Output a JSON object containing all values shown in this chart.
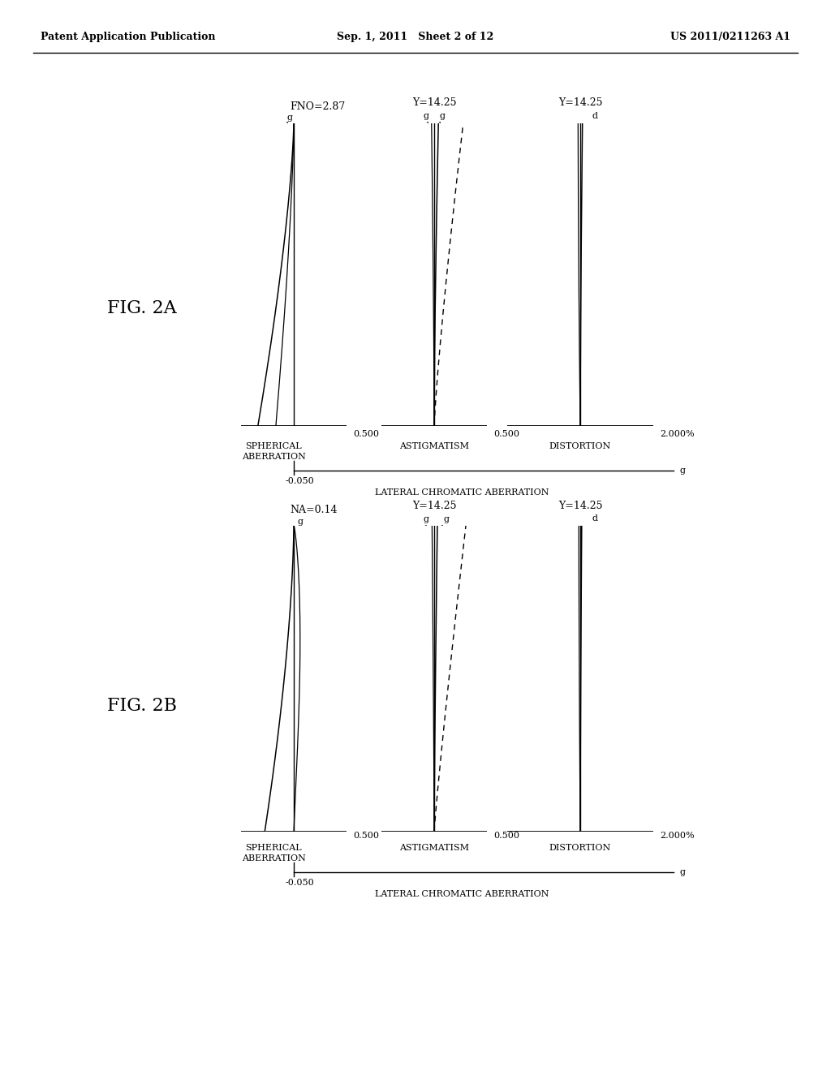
{
  "header_left": "Patent Application Publication",
  "header_mid": "Sep. 1, 2011   Sheet 2 of 12",
  "header_right": "US 2011/0211263 A1",
  "fig2a_label": "FIG. 2A",
  "fig2b_label": "FIG. 2B",
  "charts": {
    "fig2a_spherical_title": "FNO=2.87",
    "fig2a_astig_title": "Y=14.25",
    "fig2a_dist_title": "Y=14.25",
    "fig2b_spherical_title": "NA=0.14",
    "fig2b_astig_title": "Y=14.25",
    "fig2b_dist_title": "Y=14.25",
    "spherical_xlabel": "0.500",
    "astig_xlabel": "0.500",
    "dist_xlabel": "2.000%",
    "spherical_label": "SPHERICAL\nABERRATION",
    "astig_label": "ASTIGMATISM",
    "dist_label": "DISTORTION",
    "lateral_xlabel": "-0.050",
    "lateral_label": "LATERAL CHROMATIC ABERRATION",
    "lateral_g": "g"
  },
  "background": "#ffffff"
}
